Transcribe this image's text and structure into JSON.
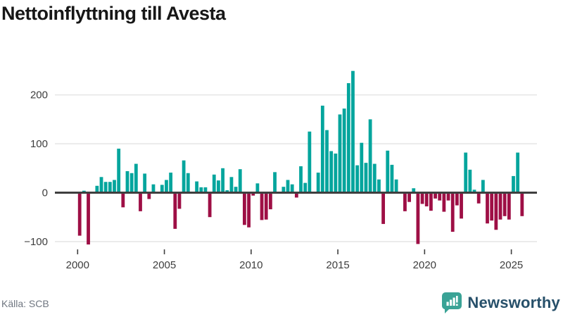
{
  "title": "Nettoinflyttning till Avesta",
  "source": "Källa: SCB",
  "brand": {
    "name": "Newsworthy"
  },
  "colors": {
    "positive": "#04a59d",
    "negative": "#9e0f45",
    "grid": "#e7e7e7",
    "axis": "#3f3f3f",
    "tick_label": "#3d3d3d",
    "source_text": "#6f7680",
    "brand_text": "#27506a",
    "logo_teal": "#3aa396",
    "title_text": "#171717"
  },
  "chart_data": {
    "type": "bar",
    "title": "Nettoinflyttning till Avesta",
    "frequency": "quarterly",
    "start_year": 2000,
    "start_quarter": 1,
    "values": [
      -88,
      4,
      -106,
      0,
      14,
      32,
      22,
      22,
      26,
      90,
      -30,
      44,
      40,
      59,
      -38,
      39,
      -13,
      17,
      0,
      16,
      26,
      41,
      -74,
      -33,
      66,
      40,
      0,
      23,
      11,
      11,
      -50,
      37,
      25,
      50,
      5,
      32,
      12,
      48,
      -66,
      -71,
      -6,
      19,
      -56,
      -55,
      -34,
      42,
      0,
      12,
      26,
      17,
      -10,
      54,
      20,
      125,
      0,
      41,
      178,
      128,
      85,
      80,
      160,
      172,
      224,
      249,
      56,
      102,
      61,
      150,
      59,
      27,
      -64,
      86,
      57,
      27,
      0,
      -38,
      -19,
      9,
      -105,
      -23,
      -28,
      -37,
      -12,
      -16,
      -39,
      -16,
      -80,
      -26,
      -53,
      82,
      47,
      6,
      -22,
      26,
      -63,
      -57,
      -76,
      -55,
      -48,
      -55,
      34,
      82,
      -48
    ],
    "x_axis": {
      "tick_labels": [
        "2000",
        "2005",
        "2010",
        "2015",
        "2020",
        "2025"
      ]
    },
    "y_axis": {
      "ticks": [
        {
          "value": 200,
          "label": "200"
        },
        {
          "value": 100,
          "label": "100"
        },
        {
          "value": 0,
          "label": "0"
        },
        {
          "value": -100,
          "label": "−100"
        }
      ]
    },
    "ylim": [
      -120,
      260
    ],
    "grid": "horizontal",
    "legend": "none"
  }
}
